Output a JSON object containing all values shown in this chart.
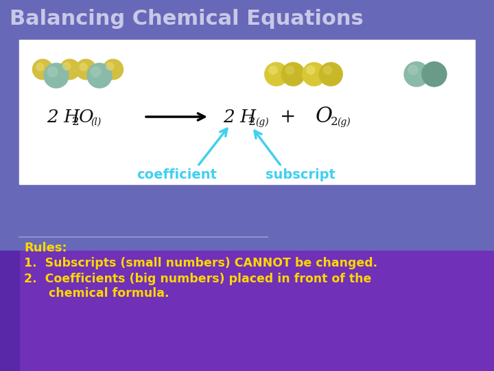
{
  "title": "Balancing Chemical Equations",
  "title_color": "#c8c8e8",
  "title_fontsize": 22,
  "bg_color": "#6b6bb5",
  "bg_bottom_color": "#8040c0",
  "rules_label": "Rules:",
  "rules_label_color": "#FFD700",
  "rules_label_fontsize": 13,
  "rule1": "1.  Subscripts (small numbers) CANNOT be changed.",
  "rule2": "2.  Coefficients (big numbers) placed in front of the",
  "rule2b": "      chemical formula.",
  "rules_text_color": "#FFD700",
  "rules_fontsize": 12.5,
  "coeff_label": "coefficient",
  "subscript_label": "subscript",
  "label_color": "#40D0F0",
  "label_fontsize": 14,
  "arrow_color": "#40D0F0",
  "box_bg": "#ffffff",
  "separator_color": "#9090d0",
  "eq_color": "#111111",
  "mol_teal": "#7aafA0",
  "mol_teal_dark": "#5a9080",
  "mol_yellow": "#d4c040",
  "mol_yellow2": "#e8d050"
}
